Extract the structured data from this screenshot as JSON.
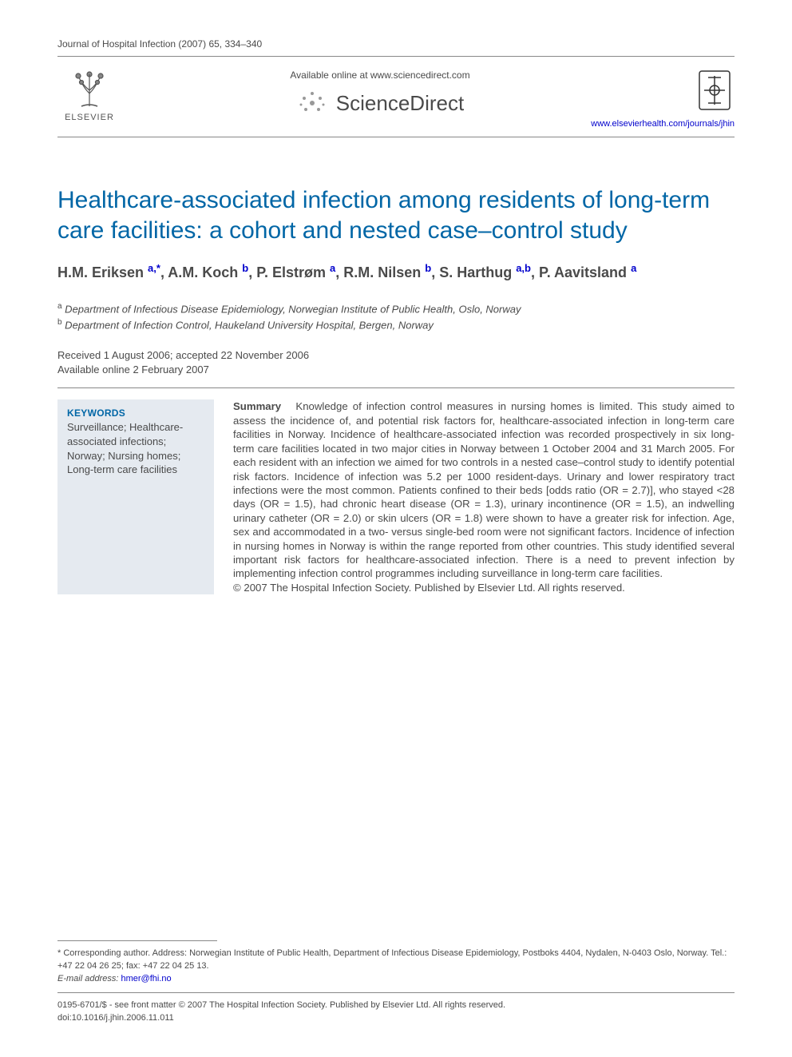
{
  "colors": {
    "title": "#0066a6",
    "link": "#0000cc",
    "text": "#4a4a4a",
    "keywords_bg": "#e5eaf0",
    "rule": "#888888",
    "background": "#ffffff"
  },
  "typography": {
    "title_fontsize": 30,
    "authors_fontsize": 18,
    "body_fontsize": 13.2,
    "small_fontsize": 11,
    "sd_fontsize": 26
  },
  "header": {
    "citation": "Journal of Hospital Infection (2007) 65, 334–340",
    "available_text": "Available online at www.sciencedirect.com",
    "sciencedirect": "ScienceDirect",
    "publisher": "ELSEVIER",
    "journal_url": "www.elsevierhealth.com/journals/jhin"
  },
  "article": {
    "title": "Healthcare-associated infection among residents of long-term care facilities: a cohort and nested case–control study",
    "authors_html": "H.M. Eriksen <sup class='sup-link'>a,</sup><sup class='sup-link'>*</sup>, A.M. Koch <sup class='sup-link'>b</sup>, P. Elstrøm <sup class='sup-link'>a</sup>, R.M. Nilsen <sup class='sup-link'>b</sup>, S. Harthug <sup class='sup-link'>a,b</sup>, P. Aavitsland <sup class='sup-link'>a</sup>",
    "affiliations": [
      {
        "mark": "a",
        "text": "Department of Infectious Disease Epidemiology, Norwegian Institute of Public Health, Oslo, Norway"
      },
      {
        "mark": "b",
        "text": "Department of Infection Control, Haukeland University Hospital, Bergen, Norway"
      }
    ],
    "received": "Received 1 August 2006; accepted 22 November 2006",
    "available_online": "Available online 2 February 2007"
  },
  "keywords": {
    "heading": "KEYWORDS",
    "list": "Surveillance; Healthcare-associated infections; Norway; Nursing homes; Long-term care facilities"
  },
  "summary": {
    "lead": "Summary",
    "text": "Knowledge of infection control measures in nursing homes is limited. This study aimed to assess the incidence of, and potential risk factors for, healthcare-associated infection in long-term care facilities in Norway. Incidence of healthcare-associated infection was recorded prospectively in six long-term care facilities located in two major cities in Norway between 1 October 2004 and 31 March 2005. For each resident with an infection we aimed for two controls in a nested case–control study to identify potential risk factors. Incidence of infection was 5.2 per 1000 resident-days. Urinary and lower respiratory tract infections were the most common. Patients confined to their beds [odds ratio (OR = 2.7)], who stayed <28 days (OR = 1.5), had chronic heart disease (OR = 1.3), urinary incontinence (OR = 1.5), an indwelling urinary catheter (OR = 2.0) or skin ulcers (OR = 1.8) were shown to have a greater risk for infection. Age, sex and accommodated in a two- versus single-bed room were not significant factors. Incidence of infection in nursing homes in Norway is within the range reported from other countries. This study identified several important risk factors for healthcare-associated infection. There is a need to prevent infection by implementing infection control programmes including surveillance in long-term care facilities.",
    "copyright": "© 2007 The Hospital Infection Society. Published by Elsevier Ltd. All rights reserved."
  },
  "footer": {
    "corr": "* Corresponding author. Address: Norwegian Institute of Public Health, Department of Infectious Disease Epidemiology, Postboks 4404, Nydalen, N-0403 Oslo, Norway. Tel.: +47 22 04 26 25; fax: +47 22 04 25 13.",
    "email_label": "E-mail address:",
    "email": "hmer@fhi.no",
    "front_matter": "0195-6701/$ - see front matter © 2007 The Hospital Infection Society. Published by Elsevier Ltd. All rights reserved.",
    "doi": "doi:10.1016/j.jhin.2006.11.011"
  }
}
